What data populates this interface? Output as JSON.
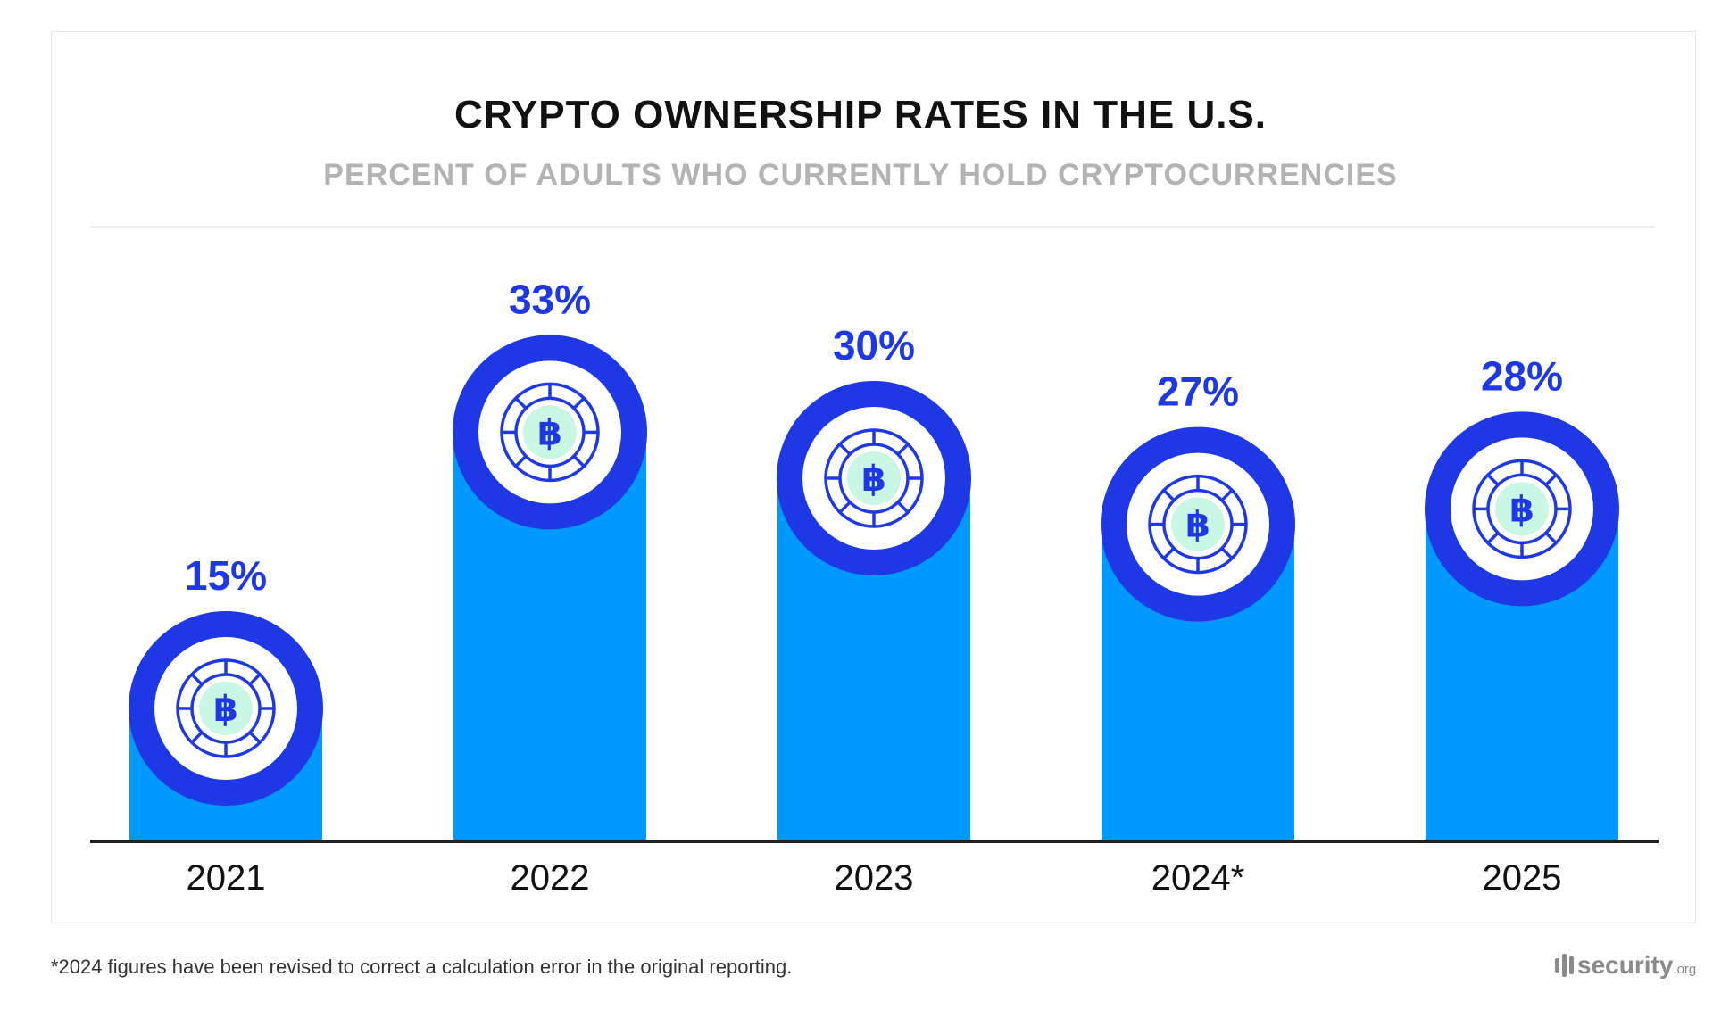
{
  "chart_data": {
    "type": "bar",
    "title": "CRYPTO OWNERSHIP RATES IN THE U.S.",
    "subtitle": "PERCENT OF ADULTS WHO CURRENTLY HOLD CRYPTOCURRENCIES",
    "categories": [
      "2021",
      "2022",
      "2023",
      "2024*",
      "2025"
    ],
    "values": [
      15,
      33,
      30,
      27,
      28
    ],
    "value_labels": [
      "15%",
      "33%",
      "30%",
      "27%",
      "28%"
    ],
    "unit": "%",
    "xlabel": "",
    "ylabel": "",
    "grid": false,
    "marker_icon": "bitcoin-coin-icon",
    "colors": {
      "bar": "#0099ff",
      "ring": "#1f38e6",
      "label": "#1f38e6",
      "coin_fill": "#c9f7e3",
      "baseline": "#222222"
    }
  },
  "footnote": "*2024 figures have been revised to correct a calculation error in the original reporting.",
  "logo": {
    "main": "security",
    "tld": ".org"
  }
}
